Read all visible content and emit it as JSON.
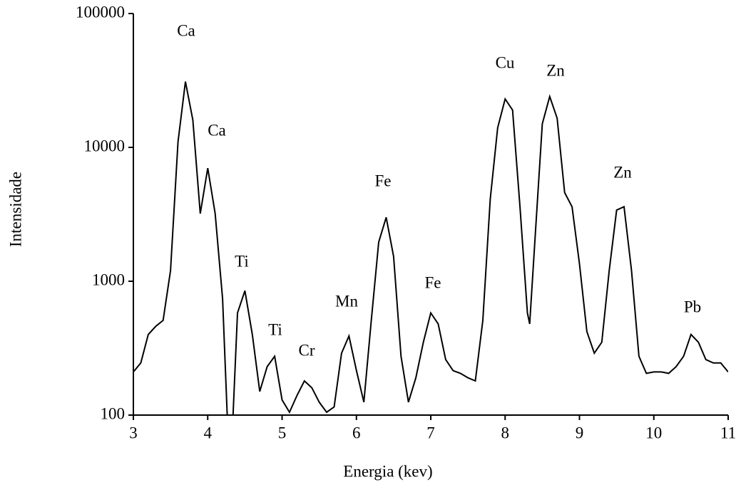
{
  "chart_data": {
    "type": "line",
    "yscale": "log",
    "color": "#000000",
    "x_label": "Energia (kev)",
    "y_label": "Intensidade",
    "x": [
      3.0,
      3.1,
      3.2,
      3.3,
      3.4,
      3.5,
      3.6,
      3.7,
      3.8,
      3.9,
      4.0,
      4.1,
      4.2,
      4.3,
      4.4,
      4.5,
      4.6,
      4.7,
      4.8,
      4.9,
      5.0,
      5.1,
      5.2,
      5.3,
      5.4,
      5.5,
      5.6,
      5.7,
      5.8,
      5.9,
      6.0,
      6.1,
      6.2,
      6.3,
      6.4,
      6.5,
      6.6,
      6.7,
      6.8,
      6.9,
      7.0,
      7.1,
      7.2,
      7.3,
      7.4,
      7.5,
      7.6,
      7.7,
      7.8,
      7.9,
      8.0,
      8.1,
      8.2,
      8.3,
      8.33,
      8.4,
      8.5,
      8.6,
      8.7,
      8.8,
      8.9,
      9.0,
      9.1,
      9.2,
      9.3,
      9.4,
      9.5,
      9.6,
      9.7,
      9.8,
      9.9,
      10.0,
      10.1,
      10.2,
      10.3,
      10.4,
      10.5,
      10.6,
      10.7,
      10.8,
      10.9,
      11.0
    ],
    "values": [
      210,
      245,
      400,
      460,
      510,
      1200,
      11000,
      31000,
      16000,
      3200,
      7000,
      3200,
      740,
      30,
      580,
      850,
      400,
      150,
      230,
      275,
      130,
      105,
      140,
      180,
      160,
      125,
      105,
      115,
      290,
      390,
      215,
      125,
      510,
      1960,
      3000,
      1530,
      275,
      125,
      190,
      350,
      580,
      480,
      260,
      215,
      205,
      190,
      180,
      510,
      4100,
      14000,
      23000,
      19000,
      3600,
      580,
      480,
      2000,
      15000,
      24000,
      16500,
      4600,
      3600,
      1350,
      420,
      290,
      350,
      1200,
      3400,
      3600,
      1200,
      275,
      205,
      210,
      210,
      205,
      230,
      275,
      400,
      350,
      260,
      245,
      245,
      210
    ],
    "xlim": [
      3,
      11
    ],
    "xticks": [
      3,
      4,
      5,
      6,
      7,
      8,
      9,
      10,
      11
    ],
    "ylim": [
      100,
      100000
    ],
    "yticks": [
      100,
      1000,
      10000,
      100000
    ],
    "annotations": [
      "Ca",
      "Ca",
      "Ti",
      "Ti",
      "Cr",
      "Mn",
      "Fe",
      "Fe",
      "Cu",
      "Zn",
      "Zn",
      "Pb"
    ]
  }
}
